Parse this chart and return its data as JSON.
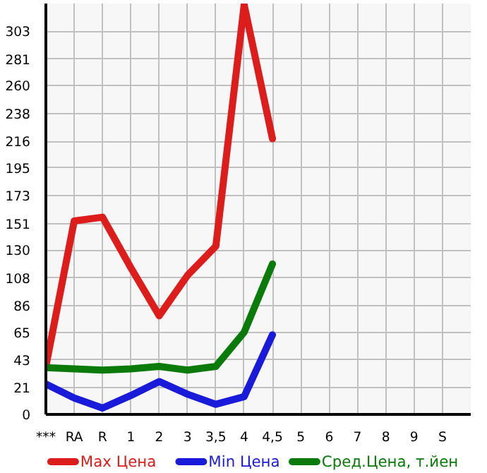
{
  "chart_data": {
    "type": "line",
    "categories": [
      "***",
      "RA",
      "R",
      "1",
      "2",
      "3",
      "3,5",
      "4",
      "4,5",
      "5",
      "6",
      "7",
      "8",
      "9",
      "S"
    ],
    "series": [
      {
        "name": "Max Цена",
        "color": "#dd1c1c",
        "values": [
          38,
          153,
          156,
          116,
          78,
          110,
          133,
          324,
          218,
          null,
          null,
          null,
          null,
          null,
          null
        ]
      },
      {
        "name": "Min Цена",
        "color": "#1a1adb",
        "values": [
          24,
          13,
          5,
          15,
          26,
          16,
          8,
          14,
          63,
          null,
          null,
          null,
          null,
          null,
          null
        ]
      },
      {
        "name": "Сред.Цена, т.йен",
        "color": "#0a7a0a",
        "values": [
          37,
          36,
          35,
          36,
          38,
          35,
          38,
          65,
          119,
          null,
          null,
          null,
          null,
          null,
          null
        ]
      }
    ],
    "ylim": [
      0,
      325
    ],
    "yticks": [
      0,
      21,
      43,
      65,
      86,
      108,
      130,
      151,
      173,
      195,
      216,
      238,
      260,
      281,
      303
    ],
    "grid": true,
    "legend": "bottom",
    "marker": "none",
    "line_style": "solid"
  }
}
